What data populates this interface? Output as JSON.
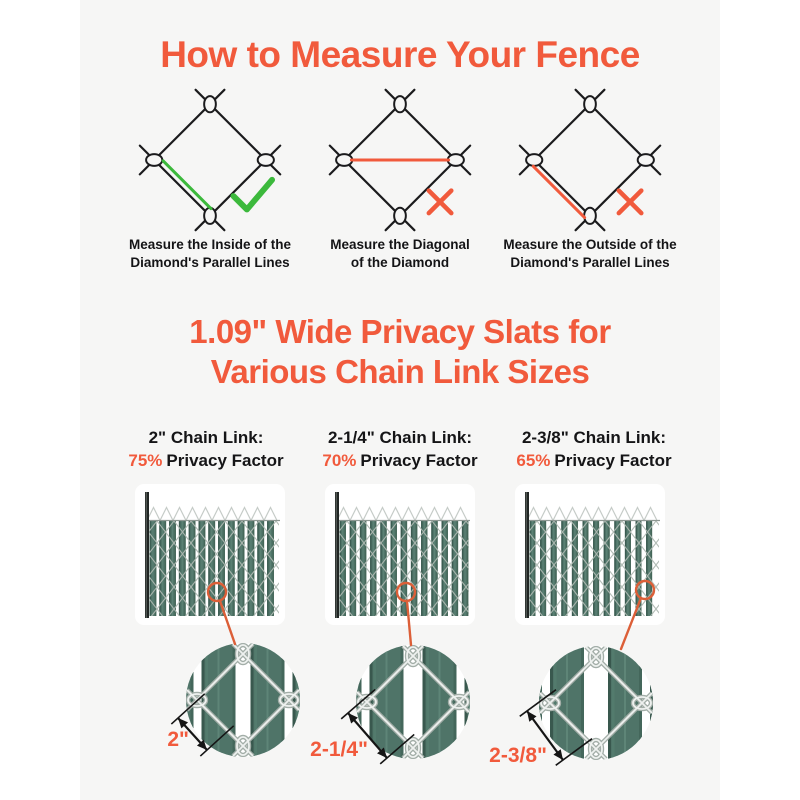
{
  "colors": {
    "accent_orange": "#F15A3C",
    "callout_orange": "#DC5F38",
    "check_green": "#3CB93C",
    "ink_black": "#1B1B1D",
    "slat_green": "#4F7468",
    "panel_background": "#F6F6F5"
  },
  "header": {
    "title": "How to Measure Your Fence"
  },
  "measure_section": {
    "diagrams": [
      {
        "method": "inside",
        "verdict": "correct",
        "caption_line1": "Measure the Inside of the",
        "caption_line2": "Diamond's Parallel Lines"
      },
      {
        "method": "diagonal",
        "verdict": "incorrect",
        "caption_line1": "Measure the Diagonal",
        "caption_line2": "of the Diamond"
      },
      {
        "method": "outside",
        "verdict": "incorrect",
        "caption_line1": "Measure the Outside of the",
        "caption_line2": "Diamond's Parallel Lines"
      }
    ]
  },
  "slats_section": {
    "title_line1": "1.09\" Wide Privacy Slats for",
    "title_line2": "Various Chain Link Sizes",
    "variants": [
      {
        "chain_link_label": "2\" Chain Link:",
        "privacy_percent": "75%",
        "privacy_label": "Privacy Factor",
        "dimension_label": "2\""
      },
      {
        "chain_link_label": "2-1/4\" Chain Link:",
        "privacy_percent": "70%",
        "privacy_label": "Privacy Factor",
        "dimension_label": "2-1/4\""
      },
      {
        "chain_link_label": "2-3/8\" Chain Link:",
        "privacy_percent": "65%",
        "privacy_label": "Privacy Factor",
        "dimension_label": "2-3/8\""
      }
    ]
  }
}
